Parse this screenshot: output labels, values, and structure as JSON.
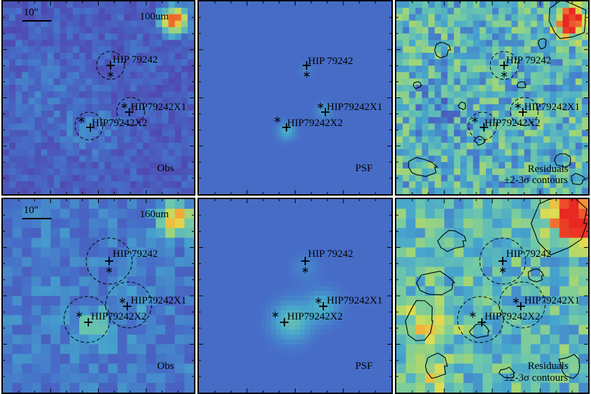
{
  "rows": [
    {
      "band": "100um",
      "scale_label": "10\"",
      "obs_label": "Obs",
      "psf_label": "PSF",
      "res_label_1": "Residuals",
      "res_label_2": "±2-3σ contours",
      "sources": [
        "HIP 79242",
        "HIP79242X1",
        "HIP79242X2"
      ]
    },
    {
      "band": "160um",
      "scale_label": "10\"",
      "obs_label": "Obs",
      "psf_label": "PSF",
      "res_label_1": "Residuals",
      "res_label_2": "±2-3σ contours",
      "sources": [
        "HIP 79242",
        "HIP79242X1",
        "HIP79242X2"
      ]
    }
  ],
  "colors": {
    "background_obs": "#5a63b8",
    "background_psf": "#4b6ab9",
    "residual_base": "#7fc88e",
    "hot": "#e8312a",
    "contour": "#000000"
  }
}
